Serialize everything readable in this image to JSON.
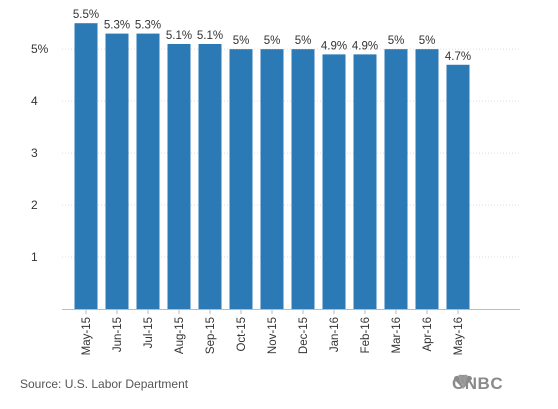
{
  "chart_data": {
    "type": "bar",
    "categories": [
      "May-15",
      "Jun-15",
      "Jul-15",
      "Aug-15",
      "Sep-15",
      "Oct-15",
      "Nov-15",
      "Dec-15",
      "Jan-16",
      "Feb-16",
      "Mar-16",
      "Apr-16",
      "May-16"
    ],
    "values": [
      5.5,
      5.3,
      5.3,
      5.1,
      5.1,
      5.0,
      5.0,
      5.0,
      4.9,
      4.9,
      5.0,
      5.0,
      4.7
    ],
    "data_labels": [
      "5.5%",
      "5.3%",
      "5.3%",
      "5.1%",
      "5.1%",
      "5%",
      "5%",
      "5%",
      "4.9%",
      "4.9%",
      "5%",
      "5%",
      "4.7%"
    ],
    "yticks": [
      1,
      2,
      3,
      4,
      5
    ],
    "ytick_labels": [
      "1",
      "2",
      "3",
      "4",
      "5%"
    ],
    "ylim": [
      0,
      5.6
    ],
    "grid": true,
    "legend": "none",
    "bar_color": "#2b79b5",
    "title": "",
    "xlabel": "",
    "ylabel": ""
  },
  "footer": {
    "source": "Source: U.S. Labor Department",
    "logo_text": "CNBC",
    "logo_icon": "peacock-icon"
  }
}
